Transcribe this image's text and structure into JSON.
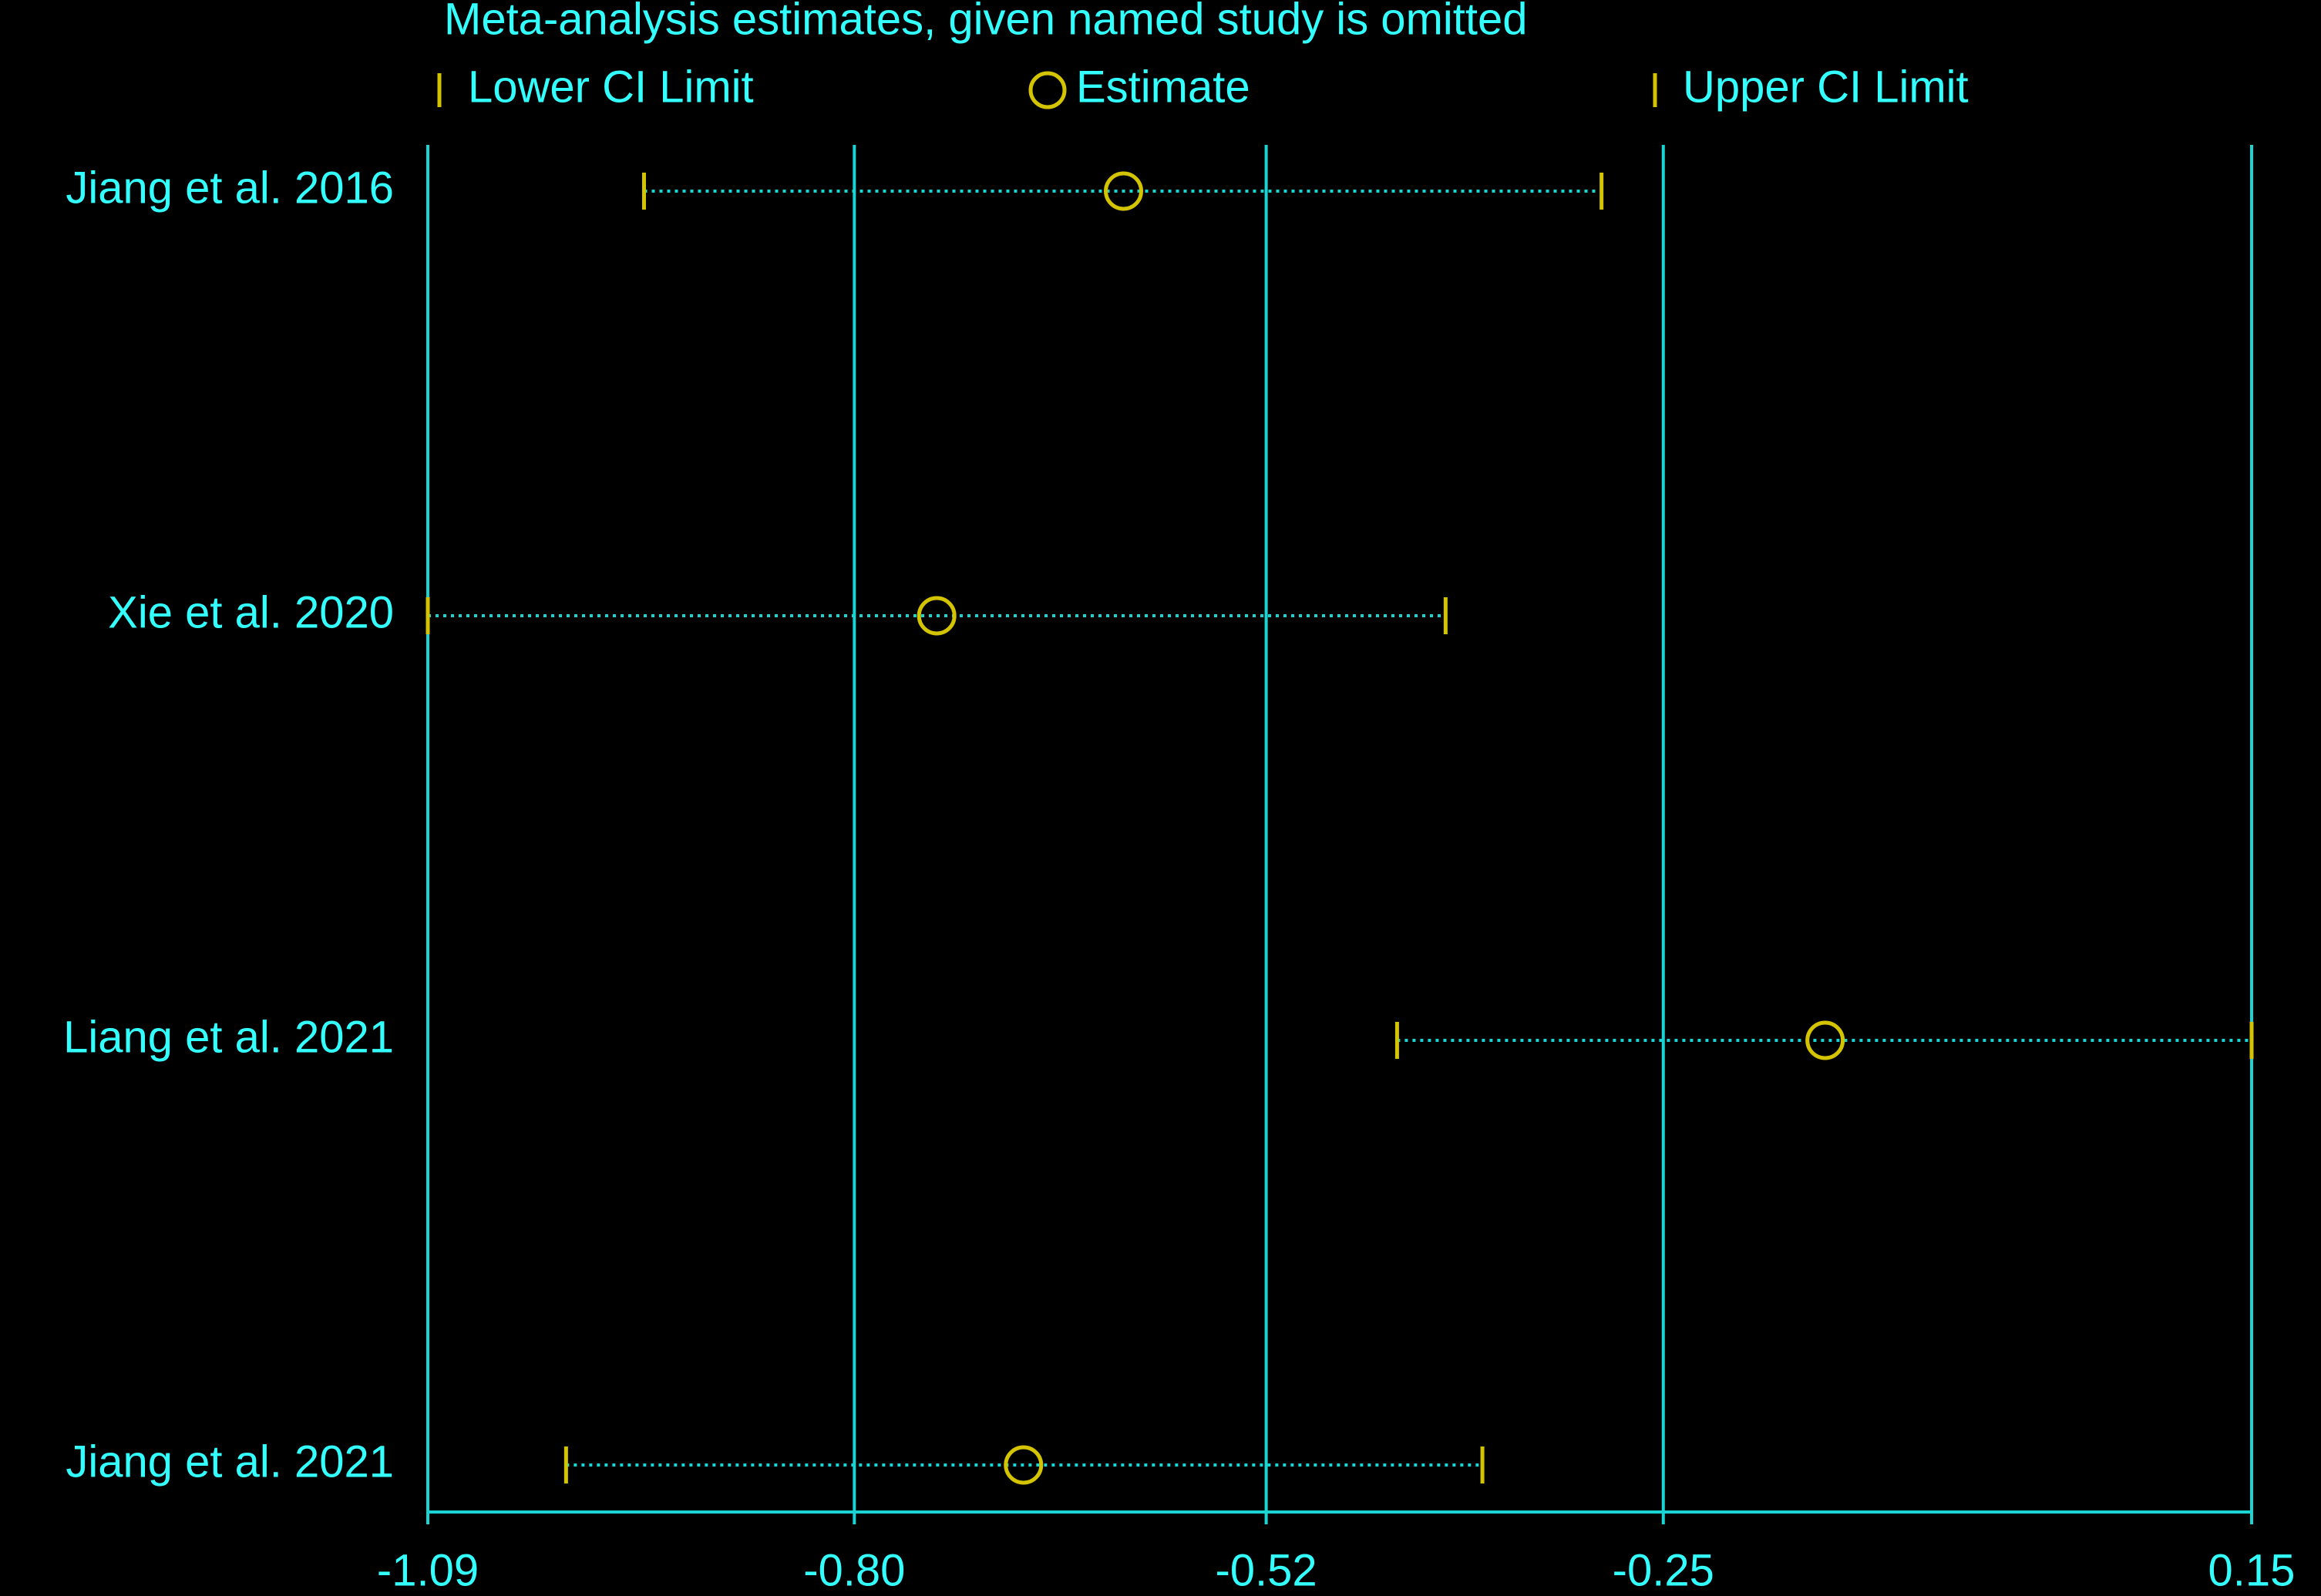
{
  "chart_data": {
    "type": "forest",
    "title": "Meta-analysis estimates, given named study is omitted",
    "categories": [
      "Jiang et al. 2016",
      "Xie et al. 2020",
      "Liang et al. 2021",
      "Jiang et al. 2021"
    ],
    "series": [
      {
        "name": "Lower CI Limit",
        "color": "#d4c400",
        "values": [
          -0.943,
          -1.09,
          -0.431,
          -0.996
        ]
      },
      {
        "name": "Estimate",
        "color": "#d4c400",
        "values": [
          -0.617,
          -0.744,
          -0.14,
          -0.685
        ]
      },
      {
        "name": "Upper CI Limit",
        "color": "#d4c400",
        "values": [
          -0.292,
          -0.398,
          0.15,
          -0.373
        ]
      }
    ],
    "xlim": [
      -1.09,
      0.15
    ],
    "xticks": [
      -1.09,
      {
        "value": -0.8,
        "label": "-0.80"
      },
      -0.52,
      -0.25,
      0.15
    ],
    "grid": true,
    "axis_color": "#1ad3d3",
    "text_color": "#33ffff",
    "background": "#000000"
  }
}
